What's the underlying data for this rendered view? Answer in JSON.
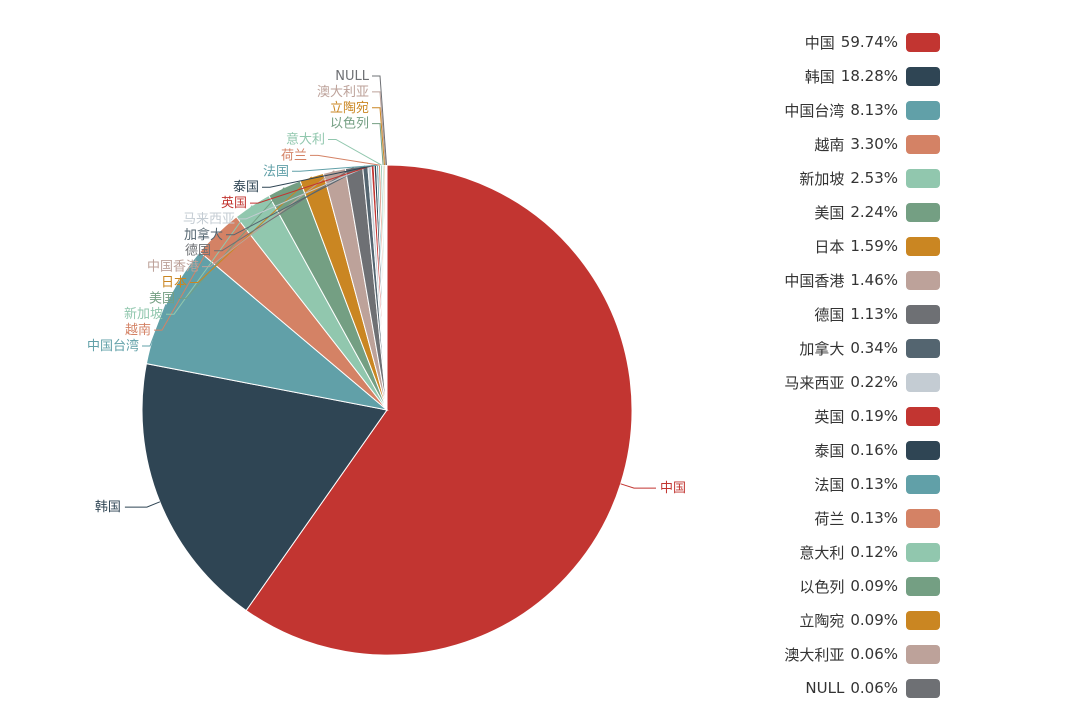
{
  "chart_data": {
    "type": "pie",
    "title": "",
    "legend_position": "right",
    "slices": [
      {
        "name": "中国",
        "value": 59.74,
        "pct_label": "59.74%",
        "color": "#c23531"
      },
      {
        "name": "韩国",
        "value": 18.28,
        "pct_label": "18.28%",
        "color": "#2f4554"
      },
      {
        "name": "中国台湾",
        "value": 8.13,
        "pct_label": "8.13%",
        "color": "#61a0a8"
      },
      {
        "name": "越南",
        "value": 3.3,
        "pct_label": "3.30%",
        "color": "#d48265"
      },
      {
        "name": "新加坡",
        "value": 2.53,
        "pct_label": "2.53%",
        "color": "#91c7ae"
      },
      {
        "name": "美国",
        "value": 2.24,
        "pct_label": "2.24%",
        "color": "#749f83"
      },
      {
        "name": "日本",
        "value": 1.59,
        "pct_label": "1.59%",
        "color": "#ca8622"
      },
      {
        "name": "中国香港",
        "value": 1.46,
        "pct_label": "1.46%",
        "color": "#bda29a"
      },
      {
        "name": "德国",
        "value": 1.13,
        "pct_label": "1.13%",
        "color": "#6e7074"
      },
      {
        "name": "加拿大",
        "value": 0.34,
        "pct_label": "0.34%",
        "color": "#546570"
      },
      {
        "name": "马来西亚",
        "value": 0.22,
        "pct_label": "0.22%",
        "color": "#c4ccd3"
      },
      {
        "name": "英国",
        "value": 0.19,
        "pct_label": "0.19%",
        "color": "#c23531"
      },
      {
        "name": "泰国",
        "value": 0.16,
        "pct_label": "0.16%",
        "color": "#2f4554"
      },
      {
        "name": "法国",
        "value": 0.13,
        "pct_label": "0.13%",
        "color": "#61a0a8"
      },
      {
        "name": "荷兰",
        "value": 0.13,
        "pct_label": "0.13%",
        "color": "#d48265"
      },
      {
        "name": "意大利",
        "value": 0.12,
        "pct_label": "0.12%",
        "color": "#91c7ae"
      },
      {
        "name": "以色列",
        "value": 0.09,
        "pct_label": "0.09%",
        "color": "#749f83"
      },
      {
        "name": "立陶宛",
        "value": 0.09,
        "pct_label": "0.09%",
        "color": "#ca8622"
      },
      {
        "name": "澳大利亚",
        "value": 0.06,
        "pct_label": "0.06%",
        "color": "#bda29a"
      },
      {
        "name": "NULL",
        "value": 0.06,
        "pct_label": "0.06%",
        "color": "#6e7074"
      }
    ]
  }
}
